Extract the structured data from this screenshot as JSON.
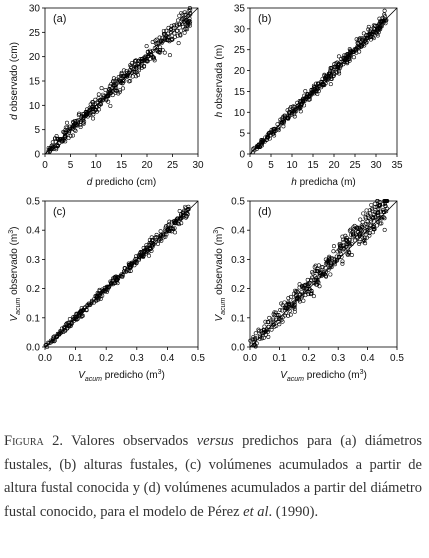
{
  "chart_data": [
    {
      "type": "scatter",
      "panel_label": "(a)",
      "xlabel_ital": "d",
      "xlabel_rest": " predicho (cm)",
      "ylabel_ital": "d",
      "ylabel_rest": " observado (cm)",
      "xlim": [
        0,
        30
      ],
      "ylim": [
        0,
        30
      ],
      "xticks": [
        0,
        5,
        10,
        15,
        20,
        25,
        30
      ],
      "yticks": [
        0,
        5,
        10,
        15,
        20,
        25,
        30
      ],
      "reference_line": "1:1",
      "marker": "open-circle",
      "point_count": 420,
      "x_range": [
        0.5,
        28.5
      ],
      "slope": 1.0,
      "spread": 1.3
    },
    {
      "type": "scatter",
      "panel_label": "(b)",
      "xlabel_ital": "h",
      "xlabel_rest": " predicha (m)",
      "ylabel_ital": "h",
      "ylabel_rest": " observada (m)",
      "xlim": [
        0,
        35
      ],
      "ylim": [
        0,
        35
      ],
      "xticks": [
        0,
        5,
        10,
        15,
        20,
        25,
        30,
        35
      ],
      "yticks": [
        0,
        5,
        10,
        15,
        20,
        25,
        30,
        35
      ],
      "reference_line": "1:1",
      "marker": "open-circle",
      "point_count": 420,
      "x_range": [
        0.5,
        32.5
      ],
      "slope": 1.0,
      "spread": 1.1
    },
    {
      "type": "scatter",
      "panel_label": "(c)",
      "xlabel_ital": "V",
      "xlabel_sub": "acum",
      "xlabel_rest": " predicho (m",
      "xlabel_sup": "3",
      "xlabel_end": ")",
      "ylabel_ital": "V",
      "ylabel_sub": "acum",
      "ylabel_rest": " observado (m",
      "ylabel_sup": "3",
      "ylabel_end": ")",
      "xlim": [
        0,
        0.5
      ],
      "ylim": [
        0,
        0.5
      ],
      "xticks": [
        0.0,
        0.1,
        0.2,
        0.3,
        0.4,
        0.5
      ],
      "yticks": [
        0.0,
        0.1,
        0.2,
        0.3,
        0.4,
        0.5
      ],
      "reference_line": "1:1",
      "marker": "open-circle",
      "point_count": 360,
      "x_range": [
        0.0,
        0.47
      ],
      "slope": 1.0,
      "spread": 0.012
    },
    {
      "type": "scatter",
      "panel_label": "(d)",
      "xlabel_ital": "V",
      "xlabel_sub": "acum",
      "xlabel_rest": " predicho (m",
      "xlabel_sup": "3",
      "xlabel_end": ")",
      "ylabel_ital": "V",
      "ylabel_sub": "acum",
      "ylabel_rest": " observado (m",
      "ylabel_sup": "3",
      "ylabel_end": ")",
      "xlim": [
        0,
        0.5
      ],
      "ylim": [
        0,
        0.5
      ],
      "xticks": [
        0.0,
        0.1,
        0.2,
        0.3,
        0.4,
        0.5
      ],
      "yticks": [
        0.0,
        0.1,
        0.2,
        0.3,
        0.4,
        0.5
      ],
      "reference_line": "1:1",
      "marker": "open-circle",
      "point_count": 420,
      "x_range": [
        0.0,
        0.47
      ],
      "slope": 1.05,
      "spread": 0.03
    }
  ],
  "caption": {
    "label": "Figura 2.",
    "text_1": " Valores observados ",
    "versus": "versus",
    "text_2": " predichos para (a) diámetros fustales, (b) alturas fustales, (c) volúmenes acumulados a partir de altura fustal conocida y (d) volúmenes acumulados a partir del diámetro fustal conocido, para el modelo de Pérez ",
    "etal": "et al",
    "text_3": ". (1990)."
  }
}
